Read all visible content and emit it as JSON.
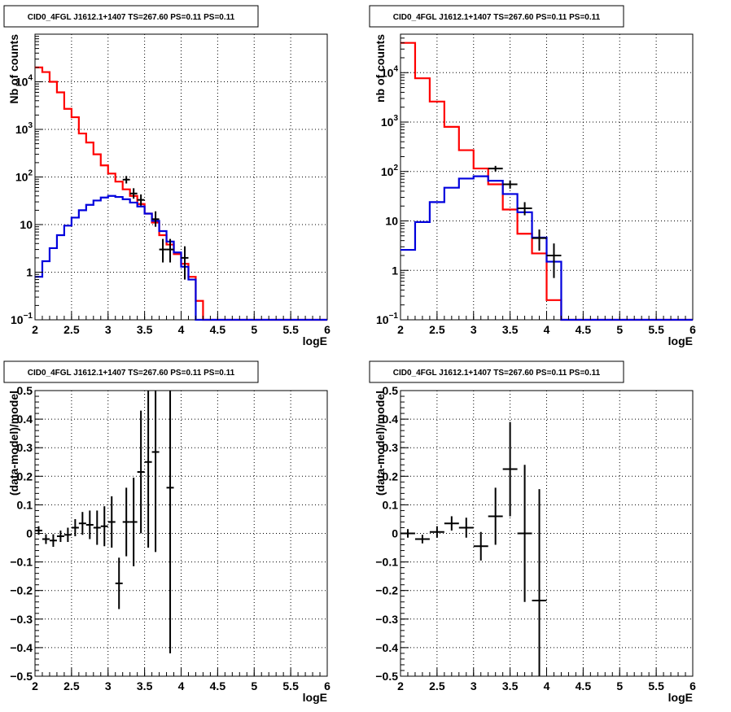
{
  "colors": {
    "model_total": "#ff0000",
    "source_model": "#0000dd",
    "data": "#000000",
    "grid": "#000000"
  },
  "chart_data": [
    {
      "type": "line",
      "title": "CID0_4FGL J1612.1+1407 TS=267.60 PS=0.11 PS=0.11",
      "xlabel": "logE",
      "ylabel": "Nb of counts",
      "xlim": [
        2,
        6
      ],
      "ylim": [
        0.1,
        100000
      ],
      "yscale": "log",
      "grid": true,
      "xticks": [
        "2",
        "2.5",
        "3",
        "3.5",
        "4",
        "4.5",
        "5",
        "5.5",
        "6"
      ],
      "yticks": [
        {
          "v": 0.1,
          "label": "10",
          "exp": "−1"
        },
        {
          "v": 1,
          "label": "1",
          "exp": ""
        },
        {
          "v": 10,
          "label": "10",
          "exp": ""
        },
        {
          "v": 100,
          "label": "10",
          "exp": "2"
        },
        {
          "v": 1000,
          "label": "10",
          "exp": "3"
        },
        {
          "v": 10000,
          "label": "10",
          "exp": "4"
        }
      ],
      "bin_edges": [
        2.0,
        2.1,
        2.2,
        2.3,
        2.4,
        2.5,
        2.6,
        2.7,
        2.8,
        2.9,
        3.0,
        3.1,
        3.2,
        3.3,
        3.4,
        3.5,
        3.6,
        3.7,
        3.8,
        3.9,
        4.0,
        4.1,
        4.2,
        4.3,
        4.4,
        4.5,
        4.6,
        4.7,
        4.8,
        4.9,
        5.0,
        5.1,
        5.2,
        5.3,
        5.4,
        5.5,
        5.6,
        5.7,
        5.8,
        5.9,
        6.0
      ],
      "series": [
        {
          "role": "model_total",
          "values": [
            20000,
            16000,
            10000,
            6000,
            2700,
            1800,
            820,
            530,
            300,
            175,
            118,
            80,
            55,
            40,
            27,
            17,
            11,
            6,
            3.8,
            2.4,
            1.5,
            0.8,
            0.25,
            0.1,
            0.1,
            0.1,
            0.1,
            0.1,
            0.1,
            0.1,
            0.1,
            0.1,
            0.1,
            0.1,
            0.1,
            0.1,
            0.1,
            0.1,
            0.1,
            0.1
          ]
        },
        {
          "role": "source_model",
          "values": [
            0.8,
            1.7,
            3.2,
            6,
            9.5,
            14,
            20,
            26,
            32,
            37,
            40,
            38,
            34,
            29,
            24,
            17,
            12,
            7.3,
            4.4,
            2.6,
            1.3,
            0.7,
            0.1,
            0.1,
            0.1,
            0.1,
            0.1,
            0.1,
            0.1,
            0.1,
            0.1,
            0.1,
            0.1,
            0.1,
            0.1,
            0.1,
            0.1,
            0.1,
            0.1,
            0.1
          ]
        }
      ],
      "points": [
        {
          "x": 3.25,
          "y": 88,
          "ylo": 73,
          "yhi": 105
        },
        {
          "x": 3.35,
          "y": 45,
          "ylo": 35,
          "yhi": 58
        },
        {
          "x": 3.45,
          "y": 33,
          "ylo": 25,
          "yhi": 43
        },
        {
          "x": 3.65,
          "y": 13,
          "ylo": 9,
          "yhi": 19
        },
        {
          "x": 3.75,
          "y": 3,
          "ylo": 1.6,
          "yhi": 5
        },
        {
          "x": 3.85,
          "y": 3,
          "ylo": 1.6,
          "yhi": 5
        },
        {
          "x": 4.05,
          "y": 2,
          "ylo": 0.7,
          "yhi": 3.5
        }
      ]
    },
    {
      "type": "line",
      "title": "CID0_4FGL J1612.1+1407 TS=267.60 PS=0.11 PS=0.11",
      "xlabel": "logE",
      "ylabel": "nb of counts",
      "xlim": [
        2,
        6
      ],
      "ylim": [
        0.1,
        60000
      ],
      "yscale": "log",
      "grid": true,
      "xticks": [
        "2",
        "2.5",
        "3",
        "3.5",
        "4",
        "4.5",
        "5",
        "5.5",
        "6"
      ],
      "yticks": [
        {
          "v": 0.1,
          "label": "10",
          "exp": "−1"
        },
        {
          "v": 1,
          "label": "1",
          "exp": ""
        },
        {
          "v": 10,
          "label": "10",
          "exp": ""
        },
        {
          "v": 100,
          "label": "10",
          "exp": "2"
        },
        {
          "v": 1000,
          "label": "10",
          "exp": "3"
        },
        {
          "v": 10000,
          "label": "10",
          "exp": "4"
        }
      ],
      "bin_edges": [
        2.0,
        2.2,
        2.4,
        2.6,
        2.8,
        3.0,
        3.2,
        3.4,
        3.6,
        3.8,
        4.0,
        4.2,
        4.4,
        4.6,
        4.8,
        5.0,
        5.2,
        5.4,
        5.6,
        5.8,
        6.0
      ],
      "series": [
        {
          "role": "model_total",
          "values": [
            40000,
            7700,
            2600,
            800,
            270,
            115,
            55,
            17,
            5.5,
            2.2,
            0.25,
            0.1,
            0.1,
            0.1,
            0.1,
            0.1,
            0.1,
            0.1,
            0.1,
            0.1
          ]
        },
        {
          "role": "source_model",
          "values": [
            2.6,
            9.5,
            24,
            47,
            72,
            80,
            65,
            35,
            15,
            4.6,
            1.5,
            0.1,
            0.1,
            0.1,
            0.1,
            0.1,
            0.1,
            0.1,
            0.1,
            0.1
          ]
        }
      ],
      "points": [
        {
          "x": 3.3,
          "y": 115,
          "ylo": 100,
          "yhi": 130
        },
        {
          "x": 3.5,
          "y": 55,
          "ylo": 45,
          "yhi": 66
        },
        {
          "x": 3.7,
          "y": 18,
          "ylo": 13,
          "yhi": 24
        },
        {
          "x": 3.9,
          "y": 4.5,
          "ylo": 2.5,
          "yhi": 6.7
        },
        {
          "x": 4.1,
          "y": 2,
          "ylo": 0.7,
          "yhi": 3.5
        }
      ]
    },
    {
      "type": "scatter",
      "title": "CID0_4FGL J1612.1+1407 TS=267.60 PS=0.11 PS=0.11",
      "xlabel": "logE",
      "ylabel": "(data-model)/model",
      "xlim": [
        2,
        6
      ],
      "ylim": [
        -0.5,
        0.5
      ],
      "grid": true,
      "xticks": [
        "2",
        "2.5",
        "3",
        "3.5",
        "4",
        "4.5",
        "5",
        "5.5",
        "6"
      ],
      "yticks": [
        "−0.5",
        "−0.4",
        "−0.3",
        "−0.2",
        "−0.1",
        "0",
        "0.1",
        "0.2",
        "0.3",
        "0.4",
        "0.5"
      ],
      "bin_width": 0.1,
      "points": [
        {
          "x": 2.05,
          "y": 0.01,
          "err": 0.015
        },
        {
          "x": 2.15,
          "y": -0.02,
          "err": 0.017
        },
        {
          "x": 2.25,
          "y": -0.025,
          "err": 0.022
        },
        {
          "x": 2.35,
          "y": -0.01,
          "err": 0.02
        },
        {
          "x": 2.45,
          "y": -0.005,
          "err": 0.025
        },
        {
          "x": 2.55,
          "y": 0.02,
          "err": 0.03
        },
        {
          "x": 2.65,
          "y": 0.035,
          "err": 0.04
        },
        {
          "x": 2.75,
          "y": 0.03,
          "err": 0.05
        },
        {
          "x": 2.85,
          "y": 0.02,
          "err": 0.06
        },
        {
          "x": 2.95,
          "y": 0.025,
          "err": 0.07
        },
        {
          "x": 3.05,
          "y": 0.04,
          "err": 0.09
        },
        {
          "x": 3.15,
          "y": -0.175,
          "err": 0.09
        },
        {
          "x": 3.25,
          "y": 0.04,
          "err": 0.12
        },
        {
          "x": 3.35,
          "y": 0.04,
          "err": 0.155
        },
        {
          "x": 3.45,
          "y": 0.215,
          "err": 0.215
        },
        {
          "x": 3.55,
          "y": 0.25,
          "err": 0.3
        },
        {
          "x": 3.65,
          "y": 0.285,
          "err": 0.35
        },
        {
          "x": 3.85,
          "y": 0.16,
          "err": 0.58
        }
      ]
    },
    {
      "type": "scatter",
      "title": "CID0_4FGL J1612.1+1407 TS=267.60 PS=0.11 PS=0.11",
      "xlabel": "logE",
      "ylabel": "(data-model)/model",
      "xlim": [
        2,
        6
      ],
      "ylim": [
        -0.5,
        0.5
      ],
      "grid": true,
      "xticks": [
        "2",
        "2.5",
        "3",
        "3.5",
        "4",
        "4.5",
        "5",
        "5.5",
        "6"
      ],
      "yticks": [
        "−0.5",
        "−0.4",
        "−0.3",
        "−0.2",
        "−0.1",
        "0",
        "0.1",
        "0.2",
        "0.3",
        "0.4",
        "0.5"
      ],
      "bin_width": 0.2,
      "points": [
        {
          "x": 2.1,
          "y": 0.0,
          "err": 0.015
        },
        {
          "x": 2.3,
          "y": -0.02,
          "err": 0.015
        },
        {
          "x": 2.5,
          "y": 0.005,
          "err": 0.02
        },
        {
          "x": 2.7,
          "y": 0.035,
          "err": 0.025
        },
        {
          "x": 2.9,
          "y": 0.02,
          "err": 0.035
        },
        {
          "x": 3.1,
          "y": -0.045,
          "err": 0.05
        },
        {
          "x": 3.3,
          "y": 0.06,
          "err": 0.1
        },
        {
          "x": 3.5,
          "y": 0.225,
          "err": 0.165
        },
        {
          "x": 3.7,
          "y": 0.0,
          "err": 0.24
        },
        {
          "x": 3.9,
          "y": -0.235,
          "err": 0.39
        }
      ]
    }
  ]
}
